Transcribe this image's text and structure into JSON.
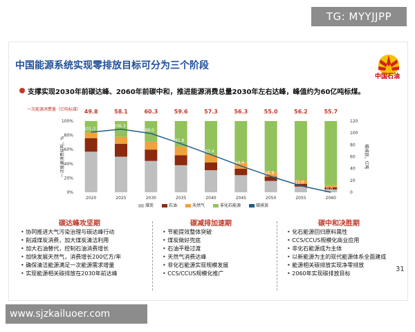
{
  "watermark_top": "TG: MYYJJPP",
  "watermark_bottom": "www.sjzkailuoer.com",
  "slide_title": "中国能源系统实现零排放目标可分为三个阶段",
  "logo_text": "中国石油",
  "subtitle": "支撑实现2030年前碳达峰、2060年前碳中和，推进能源消费总量2030年左右达峰，峰值约为60亿吨标煤。",
  "page_number": "31",
  "chart_data": {
    "type": "bar",
    "categories": [
      "2020",
      "2025",
      "2030",
      "2035",
      "2040",
      "2045",
      "2050",
      "2055",
      "2060"
    ],
    "top_label_title": "一次能源消费量（亿吨标煤）",
    "totals": [
      "49.8",
      "58.1",
      "60.3",
      "59.6",
      "57.3",
      "56.3",
      "55.0",
      "56.2",
      "55.7"
    ],
    "left_ylabel": "一次能源消费结构，%",
    "right_ylabel": "碳排放，亿吨",
    "left_ticks": [
      "0%",
      "20%",
      "40%",
      "60%",
      "80%",
      "100%"
    ],
    "right_ticks": [
      "0",
      "20",
      "40",
      "60",
      "80",
      "100",
      "120"
    ],
    "ylim_left": [
      0,
      100
    ],
    "ylim_right": [
      0,
      120
    ],
    "series": [
      {
        "name": "煤炭",
        "color": "#bfbfbf",
        "values": [
          57,
          50,
          44,
          38,
          31,
          24,
          16,
          8,
          4
        ]
      },
      {
        "name": "石油",
        "color": "#8b2a0f",
        "values": [
          19,
          18,
          16,
          14,
          11,
          9,
          6,
          4,
          3
        ]
      },
      {
        "name": "天然气",
        "color": "#f0a33c",
        "values": [
          8,
          10,
          11,
          12,
          11,
          9,
          7,
          5,
          3
        ]
      },
      {
        "name": "非化石能源",
        "color": "#92c25c",
        "values": [
          16,
          22,
          29,
          36,
          47,
          58,
          71,
          83,
          90
        ]
      }
    ],
    "emission_series": {
      "name": "碳排放",
      "color": "#1f5e88",
      "values": [
        101.3,
        106.3,
        99.0,
        81.8,
        63.4,
        44.4,
        26.8,
        11.0,
        0.0
      ],
      "labels": [
        "101.3",
        "106.3",
        "99.0",
        "81.8",
        "63.4",
        "44.4",
        "26.8",
        "11.0",
        "0.0"
      ]
    }
  },
  "phases": [
    {
      "title": "碳达峰攻坚期",
      "items": [
        "协同推进大气污染治理与碳达峰行动",
        "削减煤炭消费，加大煤炭清洁利用",
        "加大石油替代，控制石油消费增长",
        "加快发展天然气，消费增长200亿方/年",
        "确保清洁能源满足一次能源需求增量",
        "实现能源相关碳排放在2030年前达峰"
      ]
    },
    {
      "title": "碳减排加速期",
      "items": [
        "节能提效整体突破",
        "煤炭做好兜底",
        "石油平稳过渡",
        "天然气消费达峰",
        "非化石能源实现规模发展",
        "CCS/CCUS规模化推广"
      ]
    },
    {
      "title": "碳中和决胜期",
      "items": [
        "化石能源回归原料属性",
        "CCS/CCUS规模化商业应用",
        "非化石能源成为主体",
        "以新能源为主的现代能源体系全面建成",
        "能源相关碳排放实现净零排放",
        "2060年实现碳排放目标"
      ]
    }
  ]
}
